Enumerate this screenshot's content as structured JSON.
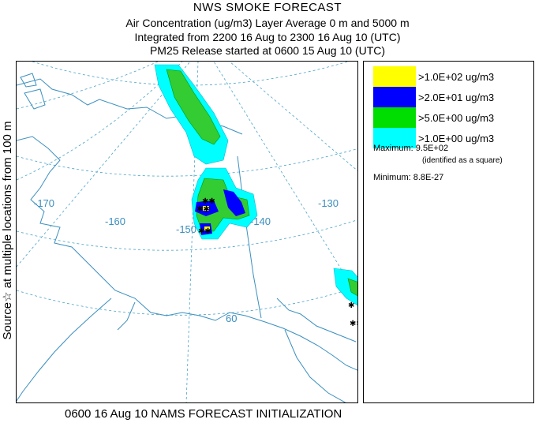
{
  "header": {
    "title": "NWS SMOKE FORECAST",
    "line2": "Air Concentration (ug/m3) Layer Average    0 m and  5000 m",
    "line3": "Integrated from 2200 16 Aug to 2300 16 Aug 10 (UTC)",
    "line4": "PM25 Release started at 0600 15 Aug 10 (UTC)"
  },
  "side_label": "Source☆  at multiple locations  from  100 m",
  "map": {
    "lon_labels": [
      "-170",
      "-160",
      "-150",
      "-140",
      "-130"
    ],
    "lat_labels": [
      "60"
    ]
  },
  "legend": {
    "items": [
      {
        "label": ">1.0E+02 ug/m3",
        "color": "#ffff00"
      },
      {
        "label": ">2.0E+01 ug/m3",
        "color": "#0000ff"
      },
      {
        "label": ">5.0E+00 ug/m3",
        "color": "#00dd00"
      },
      {
        "label": ">1.0E+00 ug/m3",
        "color": "#00ffff"
      }
    ],
    "maximum": "Maximum: 9.5E+02",
    "maximum_note": "(identified as a square)",
    "minimum": "Minimum: 8.8E-27"
  },
  "footer": "0600 16 Aug 10 NAMS FORECAST INITIALIZATION"
}
